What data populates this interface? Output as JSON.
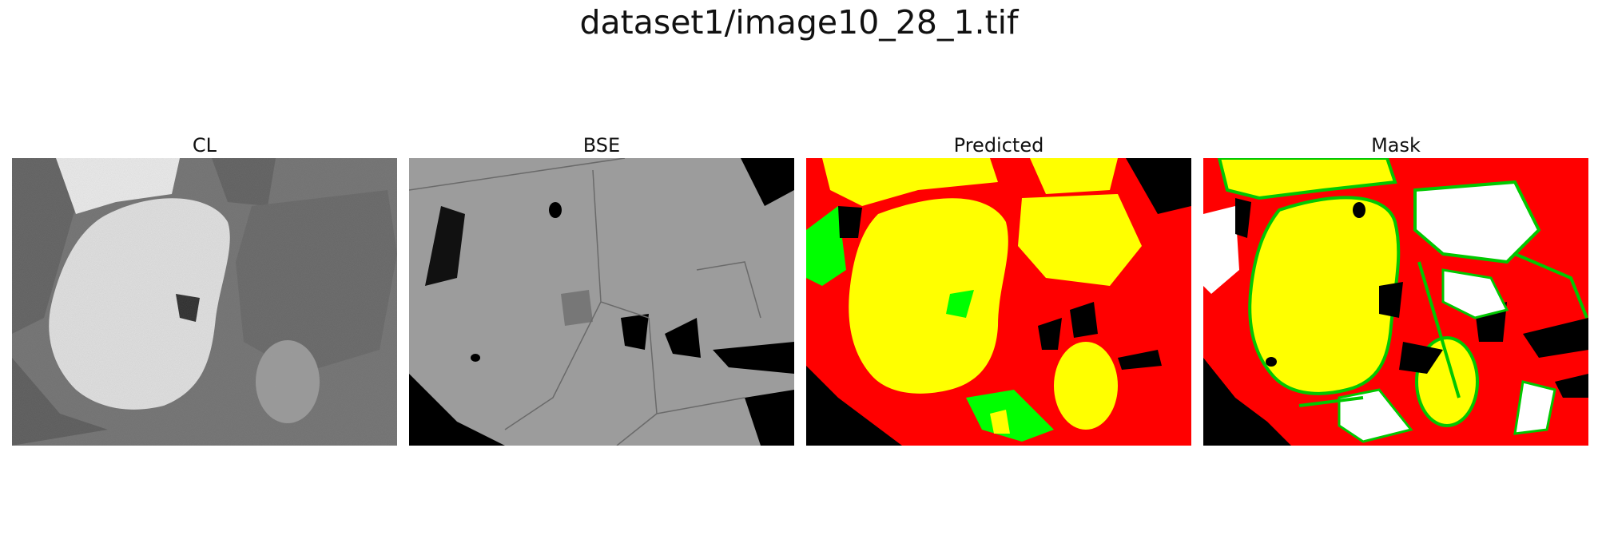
{
  "figure": {
    "title": "dataset1/image10_28_1.tif"
  },
  "panels": [
    {
      "label": "CL"
    },
    {
      "label": "BSE"
    },
    {
      "label": "Predicted"
    },
    {
      "label": "Mask"
    }
  ],
  "colors": {
    "yellow": "#ffff00",
    "red": "#ff0000",
    "green": "#00ff00",
    "black": "#000000",
    "white": "#ffffff"
  }
}
